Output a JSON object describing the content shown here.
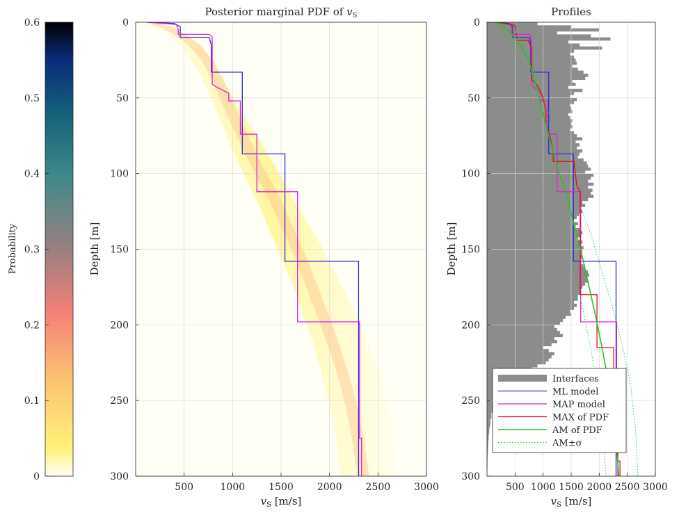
{
  "colorbar": {
    "label": "Probability",
    "ticks": [
      "0",
      "0.1",
      "0.2",
      "0.3",
      "0.4",
      "0.5",
      "0.6"
    ],
    "range": [
      0,
      0.6
    ],
    "colormap_stops": [
      "#fffff5",
      "#fff27a",
      "#fbc070",
      "#f58078",
      "#9a7f80",
      "#3f8a8a",
      "#14607a",
      "#0a2a7a",
      "#000000"
    ]
  },
  "chart_data": [
    {
      "type": "heatmap",
      "title": "Posterior marginal PDF of v_S",
      "title_text": "Posterior marginal PDF of ",
      "title_var": "v",
      "title_sub": "S",
      "xlabel_var": "v",
      "xlabel_sub": "S",
      "xlabel_unit": " [m/s]",
      "ylabel": "Depth [m]",
      "xlim": [
        0,
        3000
      ],
      "ylim": [
        0,
        300
      ],
      "y_reversed": true,
      "xticks": [
        500,
        1000,
        1500,
        2000,
        2500,
        3000
      ],
      "yticks": [
        0,
        50,
        100,
        150,
        200,
        250,
        300
      ],
      "grid": true,
      "series": [
        {
          "name": "ML model",
          "color": "#2b2bd6",
          "points": [
            [
              120,
              0
            ],
            [
              400,
              0.8
            ],
            [
              460,
              3
            ],
            [
              460,
              10
            ],
            [
              760,
              10
            ],
            [
              780,
              15
            ],
            [
              780,
              33
            ],
            [
              1100,
              33
            ],
            [
              1100,
              87
            ],
            [
              1540,
              87
            ],
            [
              1540,
              158
            ],
            [
              2300,
              158
            ],
            [
              2300,
              300
            ]
          ]
        },
        {
          "name": "MAP model",
          "color": "#e020e0",
          "points": [
            [
              120,
              0
            ],
            [
              420,
              1.5
            ],
            [
              440,
              5
            ],
            [
              440,
              8
            ],
            [
              760,
              8
            ],
            [
              790,
              10
            ],
            [
              790,
              41
            ],
            [
              840,
              43
            ],
            [
              960,
              47
            ],
            [
              960,
              52
            ],
            [
              1080,
              52
            ],
            [
              1080,
              74
            ],
            [
              1250,
              74
            ],
            [
              1250,
              112
            ],
            [
              1670,
              112
            ],
            [
              1670,
              198
            ],
            [
              2310,
              198
            ],
            [
              2310,
              275
            ],
            [
              2330,
              275
            ],
            [
              2330,
              300
            ]
          ]
        }
      ]
    },
    {
      "type": "line",
      "title": "Profiles",
      "xlabel_var": "v",
      "xlabel_sub": "S",
      "xlabel_unit": " [m/s]",
      "ylabel": "Depth [m]",
      "xlim": [
        0,
        3000
      ],
      "ylim": [
        0,
        300
      ],
      "y_reversed": true,
      "xticks": [
        500,
        1000,
        1500,
        2000,
        2500,
        3000
      ],
      "yticks": [
        0,
        50,
        100,
        150,
        200,
        250,
        300
      ],
      "grid": true,
      "legend_position": "bottom-left",
      "interfaces_color": "#8c8c8c",
      "interfaces": [
        [
          0,
          900
        ],
        [
          2,
          1500
        ],
        [
          4,
          2000
        ],
        [
          6,
          1250
        ],
        [
          8,
          1850
        ],
        [
          10,
          2200
        ],
        [
          12,
          1450
        ],
        [
          14,
          1650
        ],
        [
          16,
          2050
        ],
        [
          18,
          1550
        ],
        [
          20,
          1480
        ],
        [
          22,
          1550
        ],
        [
          24,
          1580
        ],
        [
          26,
          1600
        ],
        [
          28,
          1520
        ],
        [
          30,
          1620
        ],
        [
          32,
          1720
        ],
        [
          34,
          1800
        ],
        [
          36,
          1750
        ],
        [
          38,
          1520
        ],
        [
          40,
          1580
        ],
        [
          42,
          1450
        ],
        [
          44,
          1700
        ],
        [
          46,
          1550
        ],
        [
          48,
          1480
        ],
        [
          50,
          1600
        ],
        [
          52,
          1550
        ],
        [
          54,
          1480
        ],
        [
          56,
          1500
        ],
        [
          58,
          1520
        ],
        [
          60,
          1450
        ],
        [
          62,
          1480
        ],
        [
          64,
          1520
        ],
        [
          66,
          1500
        ],
        [
          68,
          1520
        ],
        [
          70,
          1480
        ],
        [
          72,
          1550
        ],
        [
          74,
          1600
        ],
        [
          76,
          1700
        ],
        [
          78,
          1580
        ],
        [
          80,
          1650
        ],
        [
          82,
          1600
        ],
        [
          84,
          1700
        ],
        [
          86,
          1650
        ],
        [
          88,
          1620
        ],
        [
          90,
          1720
        ],
        [
          92,
          1780
        ],
        [
          94,
          1800
        ],
        [
          96,
          1850
        ],
        [
          98,
          1750
        ],
        [
          100,
          1900
        ],
        [
          102,
          1850
        ],
        [
          104,
          1800
        ],
        [
          106,
          1900
        ],
        [
          108,
          1800
        ],
        [
          110,
          1880
        ],
        [
          112,
          1850
        ],
        [
          114,
          1900
        ],
        [
          116,
          1800
        ],
        [
          118,
          1700
        ],
        [
          120,
          1750
        ],
        [
          122,
          1650
        ],
        [
          124,
          1700
        ],
        [
          126,
          1640
        ],
        [
          128,
          1600
        ],
        [
          130,
          1550
        ],
        [
          132,
          1620
        ],
        [
          134,
          1580
        ],
        [
          136,
          1650
        ],
        [
          138,
          1700
        ],
        [
          140,
          1680
        ],
        [
          142,
          1600
        ],
        [
          144,
          1700
        ],
        [
          146,
          1650
        ],
        [
          148,
          1720
        ],
        [
          150,
          1700
        ],
        [
          152,
          1650
        ],
        [
          154,
          1700
        ],
        [
          156,
          1650
        ],
        [
          158,
          1680
        ],
        [
          160,
          1720
        ],
        [
          162,
          1750
        ],
        [
          164,
          1800
        ],
        [
          166,
          1820
        ],
        [
          168,
          1780
        ],
        [
          170,
          1800
        ],
        [
          172,
          1750
        ],
        [
          174,
          1700
        ],
        [
          176,
          1650
        ],
        [
          178,
          1680
        ],
        [
          180,
          1620
        ],
        [
          182,
          1620
        ],
        [
          184,
          1550
        ],
        [
          186,
          1600
        ],
        [
          188,
          1550
        ],
        [
          190,
          1480
        ],
        [
          192,
          1500
        ],
        [
          194,
          1400
        ],
        [
          196,
          1350
        ],
        [
          198,
          1300
        ],
        [
          200,
          1200
        ],
        [
          202,
          1250
        ],
        [
          204,
          1300
        ],
        [
          206,
          1350
        ],
        [
          208,
          1200
        ],
        [
          210,
          1250
        ],
        [
          212,
          1150
        ],
        [
          214,
          1000
        ],
        [
          216,
          1100
        ],
        [
          218,
          1200
        ],
        [
          220,
          1150
        ],
        [
          222,
          1100
        ],
        [
          224,
          1050
        ],
        [
          226,
          900
        ],
        [
          228,
          800
        ],
        [
          230,
          700
        ],
        [
          232,
          600
        ],
        [
          234,
          500
        ],
        [
          236,
          550
        ],
        [
          238,
          450
        ],
        [
          240,
          400
        ],
        [
          242,
          350
        ],
        [
          244,
          300
        ],
        [
          246,
          250
        ],
        [
          248,
          200
        ],
        [
          250,
          180
        ],
        [
          252,
          150
        ],
        [
          254,
          120
        ],
        [
          256,
          100
        ],
        [
          258,
          80
        ],
        [
          260,
          80
        ],
        [
          262,
          60
        ],
        [
          264,
          60
        ],
        [
          266,
          50
        ],
        [
          268,
          40
        ],
        [
          270,
          40
        ],
        [
          272,
          30
        ],
        [
          274,
          30
        ],
        [
          276,
          25
        ],
        [
          278,
          20
        ],
        [
          280,
          20
        ],
        [
          282,
          15
        ],
        [
          284,
          15
        ],
        [
          286,
          10
        ],
        [
          288,
          10
        ],
        [
          290,
          8
        ],
        [
          292,
          8
        ],
        [
          294,
          6
        ],
        [
          296,
          4
        ],
        [
          298,
          2
        ]
      ],
      "series": [
        {
          "name": "Interfaces",
          "color": "#8c8c8c",
          "style": "bar"
        },
        {
          "name": "ML model",
          "color": "#2b2bd6",
          "style": "step",
          "points": [
            [
              120,
              0
            ],
            [
              400,
              0.8
            ],
            [
              460,
              3
            ],
            [
              460,
              10
            ],
            [
              760,
              10
            ],
            [
              780,
              15
            ],
            [
              780,
              33
            ],
            [
              1100,
              33
            ],
            [
              1100,
              87
            ],
            [
              1540,
              87
            ],
            [
              1540,
              158
            ],
            [
              2300,
              158
            ],
            [
              2300,
              300
            ]
          ]
        },
        {
          "name": "MAP model",
          "color": "#e020e0",
          "style": "step",
          "points": [
            [
              120,
              0
            ],
            [
              420,
              1.5
            ],
            [
              440,
              5
            ],
            [
              440,
              8
            ],
            [
              760,
              8
            ],
            [
              790,
              10
            ],
            [
              790,
              41
            ],
            [
              840,
              43
            ],
            [
              960,
              47
            ],
            [
              960,
              52
            ],
            [
              1080,
              52
            ],
            [
              1080,
              74
            ],
            [
              1250,
              74
            ],
            [
              1250,
              112
            ],
            [
              1670,
              112
            ],
            [
              1670,
              198
            ],
            [
              2310,
              198
            ],
            [
              2310,
              275
            ],
            [
              2330,
              275
            ],
            [
              2330,
              300
            ]
          ]
        },
        {
          "name": "MAX of PDF",
          "color": "#e01010",
          "style": "step",
          "points": [
            [
              150,
              0
            ],
            [
              500,
              2
            ],
            [
              520,
              8
            ],
            [
              520,
              12
            ],
            [
              740,
              12
            ],
            [
              800,
              18
            ],
            [
              800,
              38
            ],
            [
              900,
              42
            ],
            [
              980,
              48
            ],
            [
              1050,
              58
            ],
            [
              1050,
              68
            ],
            [
              1120,
              75
            ],
            [
              1180,
              85
            ],
            [
              1180,
              92
            ],
            [
              1550,
              92
            ],
            [
              1600,
              108
            ],
            [
              1660,
              112
            ],
            [
              1660,
              180
            ],
            [
              1960,
              180
            ],
            [
              1960,
              215
            ],
            [
              2260,
              215
            ],
            [
              2260,
              240
            ],
            [
              2330,
              240
            ],
            [
              2330,
              290
            ],
            [
              2370,
              290
            ],
            [
              2370,
              300
            ]
          ]
        },
        {
          "name": "AM of PDF",
          "color": "#1ec81e",
          "style": "smooth",
          "points": [
            [
              150,
              0
            ],
            [
              300,
              3
            ],
            [
              450,
              8
            ],
            [
              600,
              15
            ],
            [
              740,
              25
            ],
            [
              860,
              40
            ],
            [
              980,
              58
            ],
            [
              1100,
              75
            ],
            [
              1250,
              95
            ],
            [
              1420,
              115
            ],
            [
              1560,
              135
            ],
            [
              1700,
              155
            ],
            [
              1820,
              175
            ],
            [
              1940,
              195
            ],
            [
              2050,
              215
            ],
            [
              2150,
              235
            ],
            [
              2230,
              255
            ],
            [
              2290,
              275
            ],
            [
              2350,
              300
            ]
          ]
        },
        {
          "name": "AM±σ",
          "color": "#1ec81e",
          "style": "dotted",
          "lower": [
            [
              100,
              0
            ],
            [
              240,
              5
            ],
            [
              380,
              10
            ],
            [
              520,
              20
            ],
            [
              650,
              32
            ],
            [
              760,
              48
            ],
            [
              880,
              65
            ],
            [
              1000,
              85
            ],
            [
              1150,
              105
            ],
            [
              1300,
              125
            ],
            [
              1450,
              148
            ],
            [
              1600,
              170
            ],
            [
              1720,
              192
            ],
            [
              1850,
              215
            ],
            [
              1950,
              240
            ],
            [
              2050,
              265
            ],
            [
              2120,
              300
            ]
          ],
          "upper": [
            [
              220,
              0
            ],
            [
              380,
              3
            ],
            [
              520,
              8
            ],
            [
              660,
              14
            ],
            [
              780,
              24
            ],
            [
              900,
              38
            ],
            [
              1030,
              52
            ],
            [
              1150,
              65
            ],
            [
              1300,
              80
            ],
            [
              1480,
              100
            ],
            [
              1650,
              120
            ],
            [
              1850,
              140
            ],
            [
              2050,
              165
            ],
            [
              2250,
              190
            ],
            [
              2420,
              215
            ],
            [
              2560,
              240
            ],
            [
              2650,
              270
            ],
            [
              2690,
              300
            ]
          ]
        }
      ]
    }
  ]
}
